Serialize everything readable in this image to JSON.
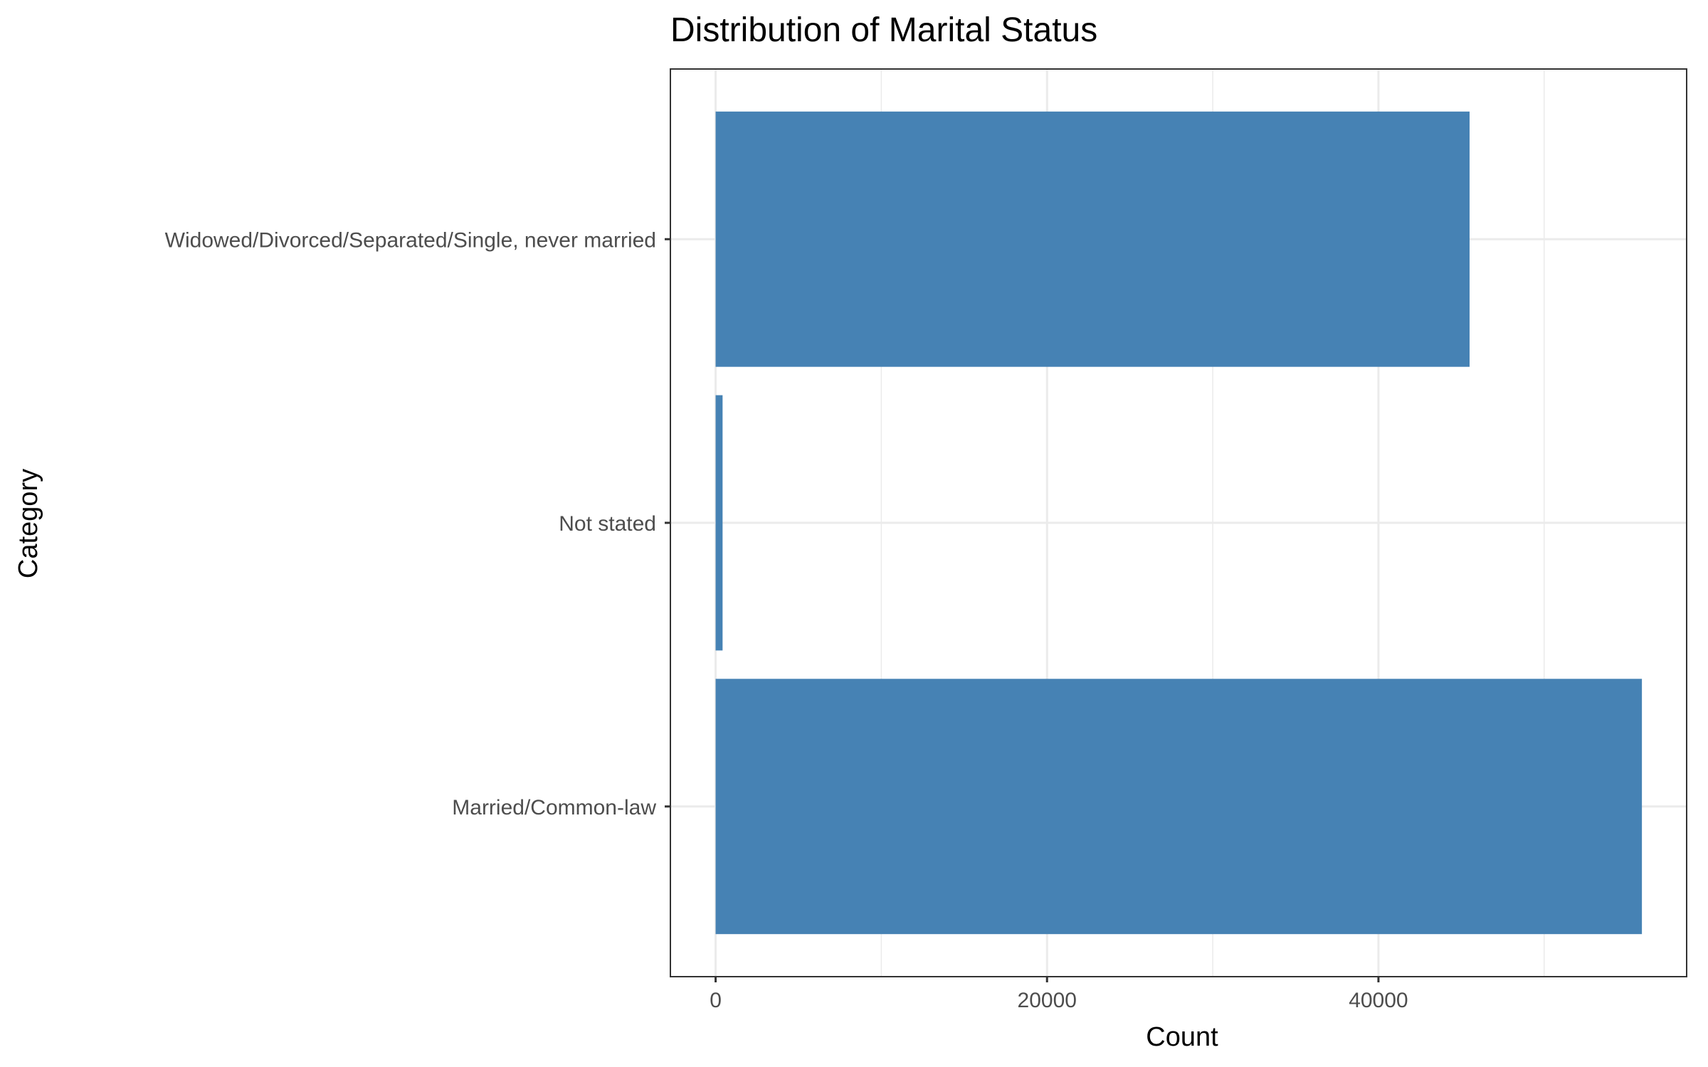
{
  "chart_data": {
    "type": "bar",
    "orientation": "horizontal",
    "title": "Distribution of Marital Status",
    "xlabel": "Count",
    "ylabel": "Category",
    "categories": [
      "Married/Common-law",
      "Not stated",
      "Widowed/Divorced/Separated/Single, never married"
    ],
    "values": [
      55900,
      420,
      45500
    ],
    "xlim": [
      -2730,
      58600
    ],
    "xticks": [
      0,
      20000,
      40000
    ],
    "grid": true,
    "legend": "none",
    "colors": {
      "bar": "#4682B4",
      "grid": "#ebebeb",
      "panel_border": "#333333"
    }
  }
}
